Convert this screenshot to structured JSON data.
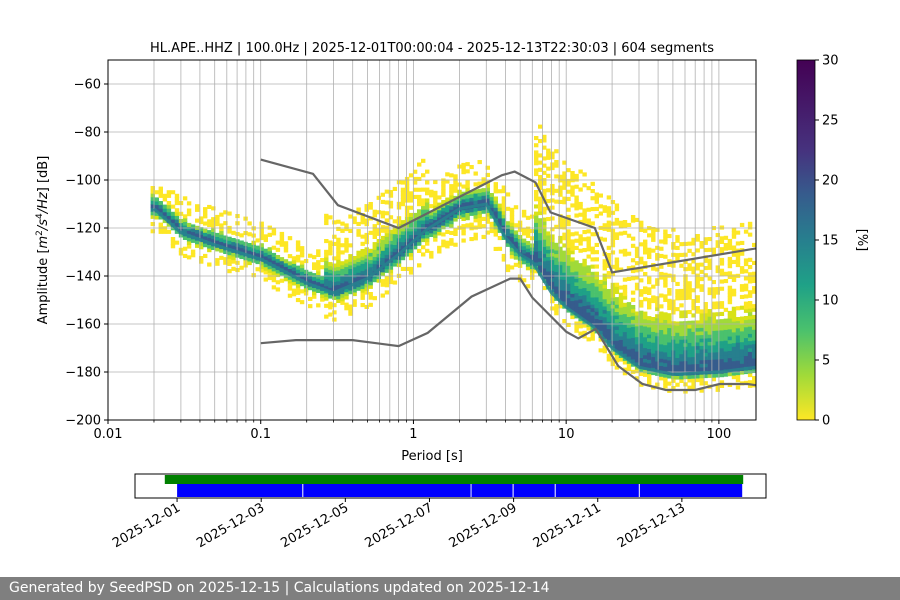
{
  "chart_data": [
    {
      "type": "heatmap",
      "title": "HL.APE..HHZ | 100.0Hz | 2025-12-01T00:00:04 - 2025-12-13T22:30:03 | 604 segments",
      "xlabel": "Period [s]",
      "ylabel": "Amplitude [$m^2/s^4/Hz$] [dB]",
      "x_scale": "log",
      "xlim": [
        0.01,
        175
      ],
      "ylim": [
        -200,
        -50
      ],
      "x_tick_labels": [
        "0.01",
        "0.1",
        "1",
        "10",
        "100"
      ],
      "x_ticks": [
        0.01,
        0.1,
        1,
        10,
        100
      ],
      "y_ticks": [
        -200,
        -180,
        -160,
        -140,
        -120,
        -100,
        -80,
        -60
      ],
      "y_tick_labels": [
        "−200",
        "−180",
        "−160",
        "−140",
        "−120",
        "−100",
        "−80",
        "−60"
      ],
      "grid": true,
      "colormap": "viridis_r",
      "colorbar": {
        "label": "[%]",
        "range": [
          0,
          30
        ],
        "ticks": [
          0,
          5,
          10,
          15,
          20,
          25,
          30
        ]
      },
      "mode_curve": {
        "period": [
          0.02,
          0.03,
          0.05,
          0.1,
          0.2,
          0.3,
          0.5,
          0.8,
          1.2,
          2,
          3,
          4,
          5,
          6,
          8,
          10,
          15,
          20,
          30,
          50,
          100,
          175
        ],
        "db": [
          -112,
          -122,
          -127,
          -133,
          -143,
          -147,
          -141,
          -131,
          -121,
          -112,
          -110,
          -124,
          -131,
          -134,
          -147,
          -153,
          -161,
          -170,
          -178,
          -181,
          -180,
          -178
        ]
      },
      "new_high_noise_model": {
        "period": [
          0.1,
          0.22,
          0.32,
          0.8,
          3.8,
          4.6,
          6.3,
          7.9,
          15.4,
          20,
          175
        ],
        "db": [
          -91.5,
          -97.4,
          -110.5,
          -120,
          -98,
          -96.5,
          -101,
          -113.5,
          -120,
          -138.5,
          -128.5
        ]
      },
      "new_low_noise_model": {
        "period": [
          0.1,
          0.17,
          0.4,
          0.8,
          1.24,
          2.4,
          4.3,
          5,
          6,
          10,
          12,
          15.6,
          21.9,
          31.6,
          45,
          70,
          101,
          154,
          175
        ],
        "db": [
          -168,
          -166.7,
          -166.7,
          -169.2,
          -163.7,
          -148.6,
          -141.1,
          -141.1,
          -149,
          -163.2,
          -166,
          -162.1,
          -177.5,
          -185,
          -187.5,
          -187.5,
          -185,
          -185,
          -185.5
        ]
      }
    },
    {
      "type": "timeline",
      "x_tick_labels": [
        "2025-12-01",
        "2025-12-03",
        "2025-12-05",
        "2025-12-07",
        "2025-12-09",
        "2025-12-11",
        "2025-12-13"
      ],
      "xlim_days": [
        "2025-11-30",
        "2025-12-15"
      ],
      "green_bar": {
        "start": "2025-11-30T17:00",
        "end": "2025-12-14T11:00",
        "color": "#008000"
      },
      "blue_segments": [
        {
          "start": "2025-12-01T00:00",
          "end": "2025-12-04T00:00"
        },
        {
          "start": "2025-12-04T00:00",
          "end": "2025-12-08T00:00"
        },
        {
          "start": "2025-12-08T00:00",
          "end": "2025-12-09T00:00"
        },
        {
          "start": "2025-12-09T00:00",
          "end": "2025-12-10T00:00"
        },
        {
          "start": "2025-12-10T00:00",
          "end": "2025-12-12T00:00"
        },
        {
          "start": "2025-12-12T00:00",
          "end": "2025-12-14T11:00"
        }
      ],
      "blue_color": "#0000ff"
    }
  ],
  "footer": "Generated by SeedPSD on 2025-12-15 | Calculations updated on 2025-12-14"
}
